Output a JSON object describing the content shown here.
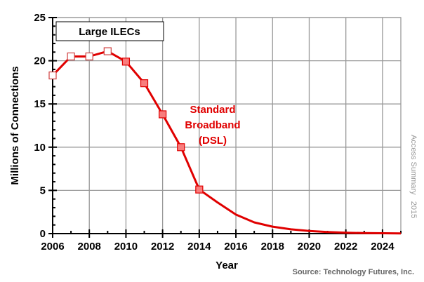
{
  "chart_data": {
    "type": "line",
    "title": "",
    "xlabel": "Year",
    "ylabel": "Millions of Connections",
    "xlim": [
      2006,
      2025
    ],
    "ylim": [
      0,
      25
    ],
    "x_ticks": [
      "2006",
      "2008",
      "2010",
      "2012",
      "2014",
      "2016",
      "2018",
      "2020",
      "2022",
      "2024"
    ],
    "y_ticks": [
      "0",
      "5",
      "10",
      "15",
      "20",
      "25"
    ],
    "grid": true,
    "legend_box": "Large ILECs",
    "annotation": [
      "Standard",
      "Broadband",
      "(DSL)"
    ],
    "side_note": "Access Summary   2015",
    "source": "Source: Technology Futures, Inc.",
    "line_color": "#e00000",
    "series": [
      {
        "x": [
          2006,
          2007,
          2008,
          2009,
          2010,
          2011,
          2012,
          2013,
          2014,
          2015,
          2016,
          2017,
          2018,
          2019,
          2020,
          2021,
          2022,
          2023,
          2024,
          2025
        ],
        "values": [
          18.3,
          20.5,
          20.5,
          21.1,
          19.9,
          17.4,
          13.8,
          10.0,
          5.1,
          3.6,
          2.2,
          1.3,
          0.8,
          0.5,
          0.3,
          0.18,
          0.1,
          0.06,
          0.04,
          0.02
        ],
        "markers_open": [
          2006,
          2007,
          2008,
          2009
        ],
        "markers_filled": [
          2010,
          2011,
          2012,
          2013,
          2014
        ]
      }
    ]
  }
}
